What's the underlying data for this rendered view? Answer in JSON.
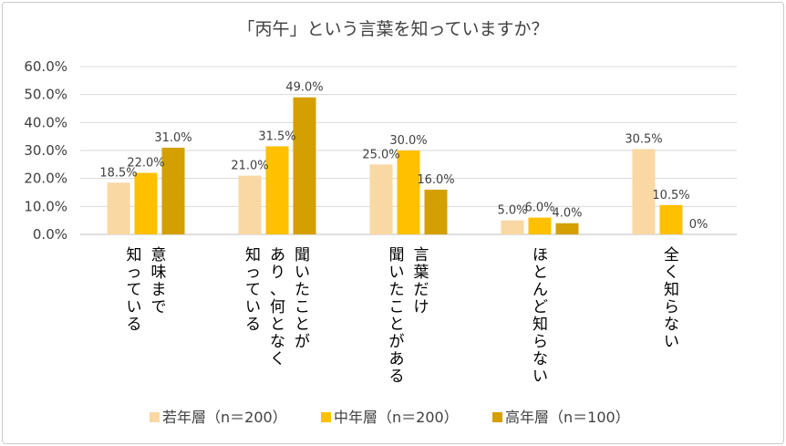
{
  "chart_data": {
    "type": "bar",
    "title": "「丙午」という言葉を知っていますか？",
    "categories": [
      [
        "意味まで",
        "知っている"
      ],
      [
        "聞いたことが",
        "あり、何となく",
        "知っている"
      ],
      [
        "言葉だけ",
        "聞いたことがある"
      ],
      [
        "ほとんど知らない"
      ],
      [
        "全く知らない"
      ]
    ],
    "series": [
      {
        "name": "若年層（n＝200）",
        "color": "#f9d8a3",
        "values": [
          18.5,
          21.0,
          25.0,
          5.0,
          30.5
        ],
        "labels": [
          "18.5%",
          "21.0%",
          "25.0%",
          "5.0%",
          "30.5%"
        ]
      },
      {
        "name": "中年層（n＝200）",
        "color": "#ffc000",
        "values": [
          22.0,
          31.5,
          30.0,
          6.0,
          10.5
        ],
        "labels": [
          "22.0%",
          "31.5%",
          "30.0%",
          "6.0%",
          "10.5%"
        ]
      },
      {
        "name": "高年層（n＝100）",
        "color": "#d49f00",
        "values": [
          31.0,
          49.0,
          16.0,
          4.0,
          0.0
        ],
        "labels": [
          "31.0%",
          "49.0%",
          "16.0%",
          "4.0%",
          "0%"
        ]
      }
    ],
    "ylim": [
      0,
      60
    ],
    "yticks": [
      "0.0%",
      "10.0%",
      "20.0%",
      "30.0%",
      "40.0%",
      "50.0%",
      "60.0%"
    ],
    "grid": true,
    "legend_position": "bottom"
  }
}
